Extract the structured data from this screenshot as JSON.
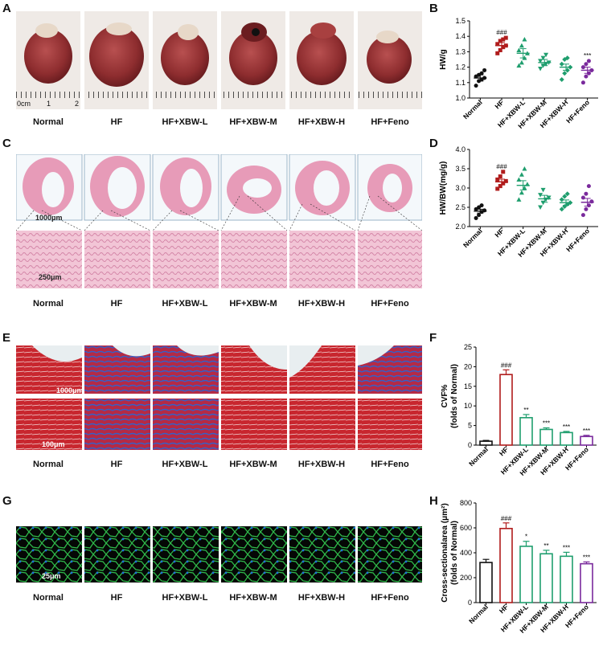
{
  "panels": {
    "A": "A",
    "B": "B",
    "C": "C",
    "D": "D",
    "E": "E",
    "F": "F",
    "G": "G",
    "H": "H"
  },
  "groups": [
    "Normal",
    "HF",
    "HF+XBW-L",
    "HF+XBW-M",
    "HF+XBW-H",
    "HF+Feno"
  ],
  "ruler_unit": "cm",
  "ruler_marks": [
    "0",
    "1",
    "2"
  ],
  "scalebars": {
    "c_top": "1000μm",
    "c_bottom": "250μm",
    "e_top": "1000μm",
    "e_bottom": "100μm",
    "g": "25μm"
  },
  "colors": {
    "normal": "#111111",
    "hf": "#b01c1c",
    "xbw": "#1f9e6e",
    "feno": "#7a2a9c",
    "he_tissue": "#e79bb8",
    "masson_red": "#c8262e",
    "masson_blue": "#3560c8",
    "if_green": "#2fb84a",
    "if_blue": "#1f6fd8"
  },
  "chart_data": [
    {
      "type": "scatter",
      "panel": "B",
      "ylabel": "HW/g",
      "ylim": [
        1.0,
        1.5
      ],
      "yticks": [
        "1.0",
        "1.1",
        "1.2",
        "1.3",
        "1.4",
        "1.5"
      ],
      "categories": [
        "Normal",
        "HF",
        "HF+XBW-L",
        "HF+XBW-M",
        "HF+XBW-H",
        "HF+Feno"
      ],
      "means": [
        1.13,
        1.34,
        1.29,
        1.23,
        1.2,
        1.18
      ],
      "sem": [
        0.02,
        0.02,
        0.03,
        0.02,
        0.02,
        0.02
      ],
      "points": [
        [
          1.08,
          1.11,
          1.12,
          1.13,
          1.14,
          1.15,
          1.16,
          1.18
        ],
        [
          1.29,
          1.31,
          1.33,
          1.34,
          1.35,
          1.37,
          1.38,
          1.39
        ],
        [
          1.21,
          1.23,
          1.26,
          1.29,
          1.31,
          1.34,
          1.38
        ],
        [
          1.19,
          1.21,
          1.22,
          1.23,
          1.24,
          1.26,
          1.28
        ],
        [
          1.12,
          1.16,
          1.18,
          1.2,
          1.22,
          1.25,
          1.26
        ],
        [
          1.1,
          1.14,
          1.16,
          1.18,
          1.2,
          1.22,
          1.24
        ]
      ],
      "annotations": [
        "",
        "###",
        "",
        "",
        "",
        "***"
      ]
    },
    {
      "type": "scatter",
      "panel": "D",
      "ylabel": "HW/BW(mg/g)",
      "ylim": [
        2.0,
        4.0
      ],
      "yticks": [
        "2.0",
        "2.5",
        "3.0",
        "3.5",
        "4.0"
      ],
      "categories": [
        "Normal",
        "HF",
        "HF+XBW-L",
        "HF+XBW-M",
        "HF+XBW-H",
        "HF+Feno"
      ],
      "means": [
        2.4,
        3.16,
        3.07,
        2.72,
        2.62,
        2.63
      ],
      "sem": [
        0.05,
        0.07,
        0.12,
        0.09,
        0.07,
        0.1
      ],
      "points": [
        [
          2.22,
          2.3,
          2.38,
          2.42,
          2.45,
          2.5,
          2.55
        ],
        [
          2.98,
          3.05,
          3.12,
          3.18,
          3.22,
          3.3,
          3.42
        ],
        [
          2.7,
          2.88,
          3.0,
          3.1,
          3.22,
          3.35,
          3.5
        ],
        [
          2.5,
          2.62,
          2.7,
          2.75,
          2.82,
          2.95
        ],
        [
          2.45,
          2.52,
          2.58,
          2.62,
          2.7,
          2.78,
          2.85
        ],
        [
          2.3,
          2.45,
          2.55,
          2.65,
          2.75,
          2.85,
          3.05
        ]
      ],
      "annotations": [
        "",
        "###",
        "",
        "",
        "",
        ""
      ]
    },
    {
      "type": "bar",
      "panel": "F",
      "ylabel": "CVF%",
      "ylabel2": "(folds of Normal)",
      "ylim": [
        0,
        25
      ],
      "yticks": [
        "0",
        "5",
        "10",
        "15",
        "20",
        "25"
      ],
      "categories": [
        "Normal",
        "HF",
        "HF+XBW-L",
        "HF+XBW-M",
        "HF+XBW-H",
        "HF+Feno"
      ],
      "values": [
        1.0,
        18.0,
        7.0,
        4.0,
        3.2,
        2.2
      ],
      "sem": [
        0.2,
        1.2,
        0.8,
        0.4,
        0.3,
        0.3
      ],
      "annotations": [
        "",
        "###",
        "**",
        "***",
        "***",
        "***"
      ]
    },
    {
      "type": "bar",
      "panel": "H",
      "ylabel": "Cross-sectionalarea (μm²)",
      "ylabel2": "(folds of Normal)",
      "ylim": [
        0,
        800
      ],
      "yticks": [
        "0",
        "200",
        "400",
        "600",
        "800"
      ],
      "categories": [
        "Normal",
        "HF",
        "HF+XBW-L",
        "HF+XBW-M",
        "HF+XBW-H",
        "HF+Feno"
      ],
      "values": [
        322,
        595,
        452,
        392,
        372,
        312
      ],
      "sem": [
        25,
        45,
        40,
        28,
        32,
        15
      ],
      "annotations": [
        "",
        "###",
        "*",
        "**",
        "***",
        "***"
      ]
    }
  ]
}
